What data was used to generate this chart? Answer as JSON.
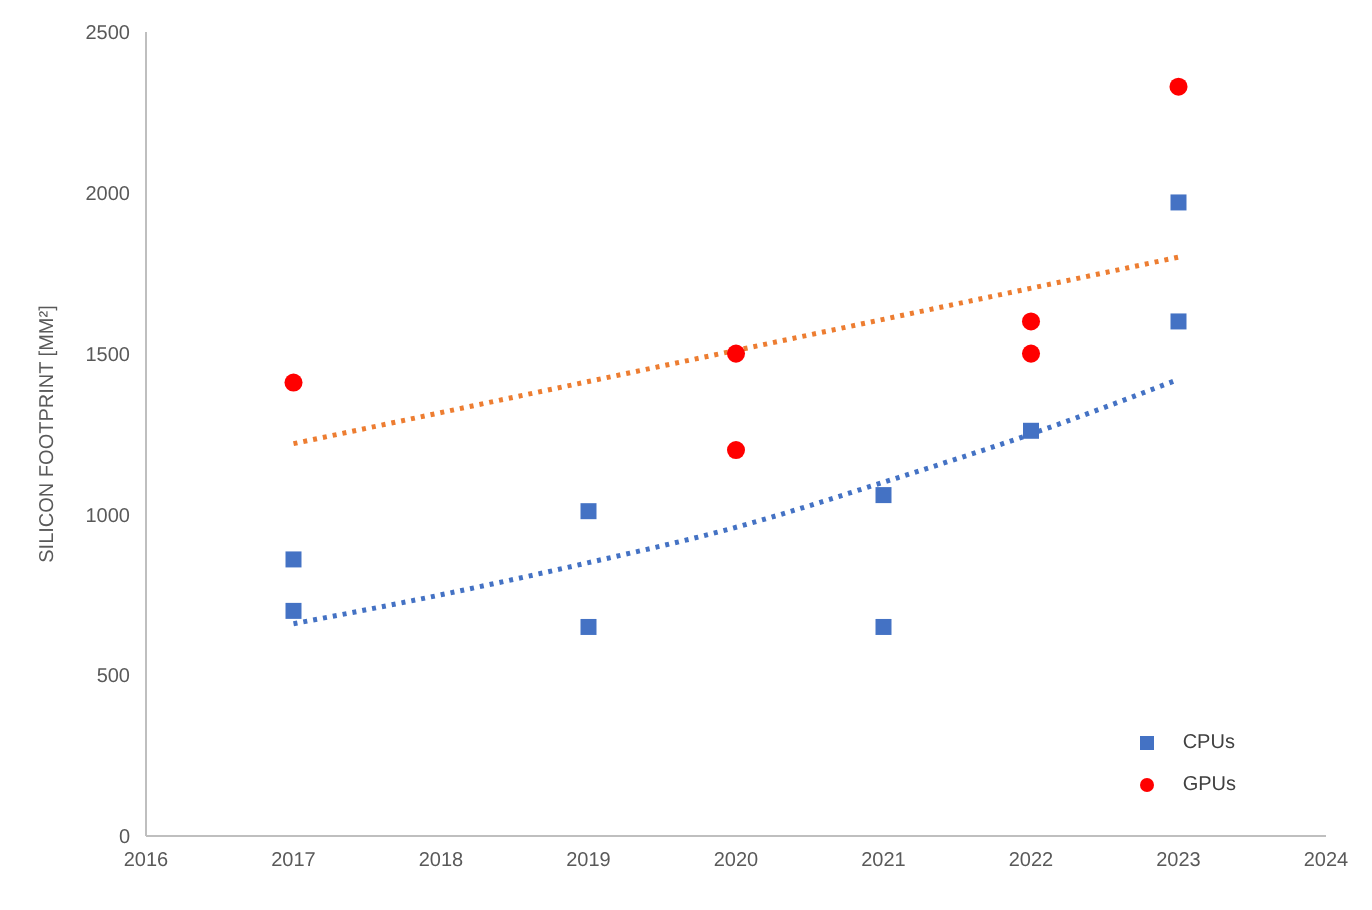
{
  "chart_data": {
    "type": "scatter",
    "ylabel": "SILICON FOOTPRINT [MM²]",
    "xlim": [
      2016,
      2024
    ],
    "xticks": [
      2016,
      2017,
      2018,
      2019,
      2020,
      2021,
      2022,
      2023,
      2024
    ],
    "ylim": [
      0,
      2500
    ],
    "yticks": [
      0,
      500,
      1000,
      1500,
      2000,
      2500
    ],
    "grid": false,
    "legend": "bottom right",
    "series": [
      {
        "name": "CPUs",
        "color": "#4472c4",
        "marker": "square",
        "x": [
          2017,
          2017,
          2019,
          2019,
          2021,
          2021,
          2022,
          2023,
          2023
        ],
        "values": [
          860,
          700,
          1010,
          650,
          1060,
          650,
          1260,
          1970,
          1600
        ]
      },
      {
        "name": "GPUs",
        "color": "#ff0000",
        "marker": "circle",
        "x": [
          2017,
          2020,
          2020,
          2022,
          2022,
          2023
        ],
        "values": [
          1410,
          1500,
          1200,
          1600,
          1500,
          2330
        ]
      },
      {
        "type": "line",
        "color": "#ed7d31",
        "line_style": "dotted",
        "marker": "none",
        "x": [
          2017,
          2023
        ],
        "values": [
          1220,
          1800
        ]
      },
      {
        "type": "line",
        "color": "#4472c4",
        "line_style": "dotted",
        "marker": "none",
        "x": [
          2017,
          2018,
          2019,
          2020,
          2021,
          2022,
          2023
        ],
        "values": [
          660,
          750,
          850,
          960,
          1100,
          1250,
          1420
        ]
      }
    ]
  }
}
